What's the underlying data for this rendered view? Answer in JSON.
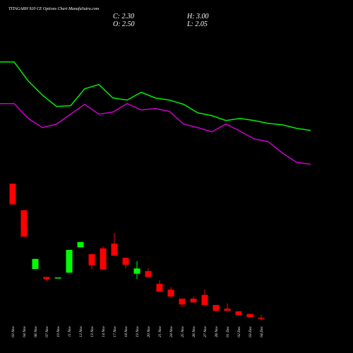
{
  "chart_data": {
    "type": "candlestick",
    "title": "TITAGARH 920 CE Options Chart MunafaSutra.com",
    "info": [
      "C: 2.30",
      "H: 3.00",
      "O: 2.50",
      "L: 2.05"
    ],
    "categories": [
      "03 Nov",
      "04 Nov",
      "06 Nov",
      "07 Nov",
      "10 Nov",
      "11 Nov",
      "12 Nov",
      "13 Nov",
      "14 Nov",
      "17 Nov",
      "18 Nov",
      "19 Nov",
      "20 Nov",
      "21 Nov",
      "24 Nov",
      "25 Nov",
      "26 Nov",
      "27 Nov",
      "28 Nov",
      "01 Dec",
      "02 Dec",
      "03 Dec",
      "04 Dec"
    ],
    "open": [
      27.8,
      22.8,
      11.7,
      10.2,
      10.0,
      11.0,
      15.8,
      14.5,
      15.6,
      16.5,
      13.8,
      10.8,
      11.3,
      8.9,
      7.8,
      6.1,
      6.1,
      6.8,
      4.9,
      4.2,
      3.7,
      3.2,
      2.5
    ],
    "high": [
      27.8,
      22.8,
      13.6,
      10.2,
      10.1,
      15.3,
      16.8,
      14.5,
      16.0,
      18.5,
      13.8,
      13.2,
      11.8,
      9.6,
      8.3,
      6.1,
      6.5,
      7.8,
      4.9,
      5.2,
      3.7,
      3.2,
      3.0
    ],
    "low": [
      23.9,
      17.8,
      11.7,
      9.4,
      10.0,
      11.0,
      15.8,
      11.7,
      11.6,
      14.2,
      11.8,
      9.8,
      10.2,
      7.4,
      6.5,
      4.5,
      5.3,
      4.9,
      3.6,
      3.8,
      3.0,
      2.6,
      2.05
    ],
    "close": [
      23.9,
      17.8,
      13.6,
      9.8,
      10.1,
      15.3,
      16.8,
      12.4,
      11.6,
      14.2,
      12.5,
      11.8,
      10.2,
      7.4,
      6.5,
      5.0,
      5.4,
      4.9,
      3.8,
      3.8,
      3.0,
      2.6,
      2.3
    ],
    "up_color": "#00ff00",
    "down_color": "#ff0000",
    "ylim": [
      0,
      60
    ],
    "y2lim": [
      0,
      450
    ],
    "series": [
      {
        "color": "#00ee00",
        "axis": "y2",
        "values": [
          381,
          381,
          354,
          334,
          318,
          319,
          343,
          349,
          330,
          327,
          338,
          330,
          327,
          321,
          309,
          305,
          298,
          301,
          298,
          294,
          292,
          287,
          284
        ]
      },
      {
        "color": "#cc00cc",
        "axis": "y2",
        "values": [
          322,
          322,
          301,
          288,
          293,
          307,
          321,
          307,
          310,
          322,
          313,
          315,
          311,
          293,
          288,
          282,
          293,
          283,
          272,
          268,
          252,
          239,
          236
        ]
      }
    ]
  }
}
